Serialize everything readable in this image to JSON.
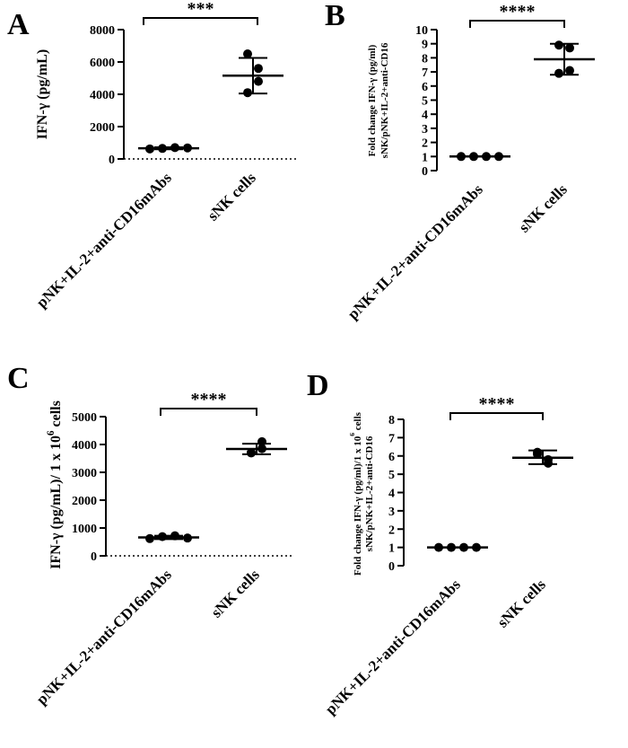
{
  "chart_data": [
    {
      "panel": "A",
      "type": "scatter",
      "categories": [
        "pNK+IL-2+anti-CD16mAbs",
        "sNK cells"
      ],
      "ylabel": [
        "IFN-γ (pg/mL)"
      ],
      "ylim": [
        0,
        8000
      ],
      "yticks": [
        0,
        2000,
        4000,
        6000,
        8000
      ],
      "dotted_zero_line": true,
      "series": [
        {
          "points": [
            620,
            650,
            700,
            680
          ],
          "mean": 660,
          "sd": [
            600,
            720
          ]
        },
        {
          "points": [
            6500,
            5600,
            4800,
            4100
          ],
          "mean": 5150,
          "sd": [
            4050,
            6250
          ]
        }
      ],
      "significance": "***"
    },
    {
      "panel": "B",
      "type": "scatter",
      "categories": [
        "pNK+IL-2+anti-CD16mAbs",
        "sNK cells"
      ],
      "ylabel": [
        "Fold change IFN-γ (pg/ml)",
        "sNK/pNK+IL-2+anti-CD16"
      ],
      "ylim": [
        0,
        10
      ],
      "yticks": [
        0,
        1,
        2,
        3,
        4,
        5,
        6,
        7,
        8,
        9,
        10
      ],
      "dotted_zero_line": false,
      "series": [
        {
          "points": [
            1,
            1,
            1,
            1
          ],
          "mean": 1,
          "sd": [
            1,
            1
          ]
        },
        {
          "points": [
            8.9,
            8.7,
            7.1,
            6.9
          ],
          "mean": 7.9,
          "sd": [
            6.8,
            9.0
          ]
        }
      ],
      "significance": "****"
    },
    {
      "panel": "C",
      "type": "scatter",
      "categories": [
        "pNK+IL-2+anti-CD16mAbs",
        "sNK cells"
      ],
      "ylabel": [
        "IFN-γ (pg/mL)/ 1 x 10",
        "6",
        " cells"
      ],
      "ylim": [
        0,
        5000
      ],
      "yticks": [
        0,
        1000,
        2000,
        3000,
        4000,
        5000
      ],
      "dotted_zero_line": true,
      "series": [
        {
          "points": [
            620,
            690,
            720,
            640
          ],
          "mean": 660,
          "sd": [
            600,
            720
          ]
        },
        {
          "points": [
            3700,
            4100,
            3850,
            3700
          ],
          "mean": 3840,
          "sd": [
            3650,
            4030
          ]
        }
      ],
      "significance": "****"
    },
    {
      "panel": "D",
      "type": "scatter",
      "categories": [
        "pNK+IL-2+anti-CD16mAbs",
        "sNK cells"
      ],
      "ylabel": [
        "Fold change IFN-γ (pg/ml)/1 x 10",
        "6",
        " cells",
        "sNK/pNK+IL-2+anti-CD16"
      ],
      "ylim": [
        0,
        8
      ],
      "yticks": [
        0,
        1,
        2,
        3,
        4,
        5,
        6,
        7,
        8
      ],
      "dotted_zero_line": false,
      "series": [
        {
          "points": [
            1,
            1,
            1,
            1
          ],
          "mean": 1,
          "sd": [
            1,
            1
          ]
        },
        {
          "points": [
            6.2,
            5.8,
            5.6,
            6.1
          ],
          "mean": 5.9,
          "sd": [
            5.55,
            6.3
          ]
        }
      ],
      "significance": "****"
    }
  ]
}
